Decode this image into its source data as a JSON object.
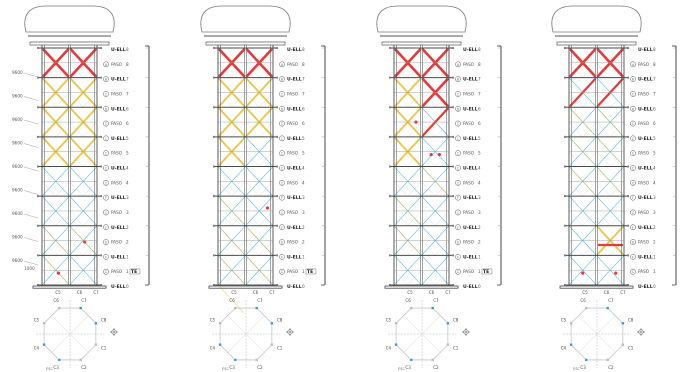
{
  "colors": {
    "structure": "#4a4a4a",
    "grid": "#d7d7d7",
    "brace_blue": "#38a8d8",
    "brace_yellow": "#e8c64a",
    "brace_red": "#e83a3a",
    "marker": "#e83a3a",
    "plan_line": "#b4b4b4",
    "plan_blue": "#3a9be0"
  },
  "levels": [
    {
      "code": "U-ELL",
      "num": "8",
      "circle": ""
    },
    {
      "code": "PASO",
      "num": "8",
      "circle": "A"
    },
    {
      "code": "U-ELL",
      "num": "7",
      "circle": "B"
    },
    {
      "code": "PASO",
      "num": "7",
      "circle": "C"
    },
    {
      "code": "U-ELL",
      "num": "6",
      "circle": "B"
    },
    {
      "code": "PASO",
      "num": "6",
      "circle": "C"
    },
    {
      "code": "U-ELL",
      "num": "5",
      "circle": "C"
    },
    {
      "code": "PASO",
      "num": "5",
      "circle": "C"
    },
    {
      "code": "U-ELL",
      "num": "4",
      "circle": "C"
    },
    {
      "code": "PASO",
      "num": "4",
      "circle": "C"
    },
    {
      "code": "U-ELL",
      "num": "3",
      "circle": "F"
    },
    {
      "code": "PASO",
      "num": "3",
      "circle": "C"
    },
    {
      "code": "U-ELL",
      "num": "2",
      "circle": "F"
    },
    {
      "code": "PASO",
      "num": "2",
      "circle": "E"
    },
    {
      "code": "U-ELL",
      "num": "1",
      "circle": "F"
    },
    {
      "code": "PASO",
      "num": "1",
      "circle": "C"
    },
    {
      "code": "U-ELL",
      "num": "0",
      "circle": ""
    }
  ],
  "tag_te": "TE",
  "elevations": [
    "9600",
    "9600",
    "9600",
    "9600",
    "9600",
    "9600",
    "9600",
    "9600",
    "9600",
    "1000"
  ],
  "plan_labels": [
    "C1",
    "C2",
    "C3",
    "C4",
    "C5",
    "C6",
    "C7",
    "C8"
  ],
  "scale_label": "ESC",
  "bottom_labels": [
    "C5",
    "C6",
    "C7"
  ],
  "towers": [
    {
      "id": "tower-1",
      "red_panels": [
        [
          0,
          0
        ],
        [
          0,
          1
        ]
      ],
      "yellow_panels": [
        [
          1,
          0
        ],
        [
          1,
          1
        ],
        [
          2,
          0
        ],
        [
          2,
          1
        ],
        [
          3,
          0
        ],
        [
          3,
          1
        ]
      ],
      "yellow_partial": [
        [
          6,
          0
        ],
        [
          6,
          1
        ],
        [
          7,
          0
        ]
      ],
      "markers": [
        [
          1.55,
          6.55
        ],
        [
          0.6,
          7.6
        ]
      ],
      "partial_red": []
    },
    {
      "id": "tower-2",
      "red_panels": [
        [
          0,
          0
        ],
        [
          0,
          1
        ]
      ],
      "yellow_panels": [
        [
          1,
          0
        ],
        [
          1,
          1
        ],
        [
          2,
          0
        ],
        [
          2,
          1
        ],
        [
          3,
          0
        ]
      ],
      "yellow_partial": [
        [
          5,
          0
        ],
        [
          6,
          0
        ],
        [
          6,
          1
        ],
        [
          7,
          0
        ],
        [
          7,
          1
        ],
        [
          8,
          0
        ]
      ],
      "markers": [
        [
          1.8,
          5.4
        ]
      ],
      "partial_red": []
    },
    {
      "id": "tower-3",
      "red_panels": [
        [
          0,
          0
        ],
        [
          0,
          1
        ],
        [
          1,
          1
        ]
      ],
      "yellow_panels": [
        [
          1,
          0
        ],
        [
          2,
          0
        ],
        [
          3,
          0
        ]
      ],
      "yellow_partial": [
        [
          4,
          1
        ],
        [
          5,
          0
        ],
        [
          6,
          0
        ]
      ],
      "markers": [
        [
          0.8,
          2.5
        ],
        [
          1.35,
          3.6
        ],
        [
          1.65,
          3.6
        ]
      ],
      "partial_red": [
        [
          2,
          1
        ]
      ]
    },
    {
      "id": "tower-4",
      "red_panels": [
        [
          0,
          0
        ],
        [
          0,
          1
        ]
      ],
      "yellow_panels": [
        [
          6,
          1
        ]
      ],
      "yellow_partial": [
        [
          2,
          0
        ],
        [
          2,
          1
        ],
        [
          3,
          0
        ],
        [
          3,
          1
        ],
        [
          4,
          0
        ],
        [
          4,
          1
        ]
      ],
      "markers": [
        [
          0.5,
          7.6
        ],
        [
          1.7,
          7.6
        ]
      ],
      "partial_red": [
        [
          1,
          0
        ],
        [
          1,
          1
        ]
      ],
      "red_bar": [
        1,
        6.65
      ]
    }
  ]
}
